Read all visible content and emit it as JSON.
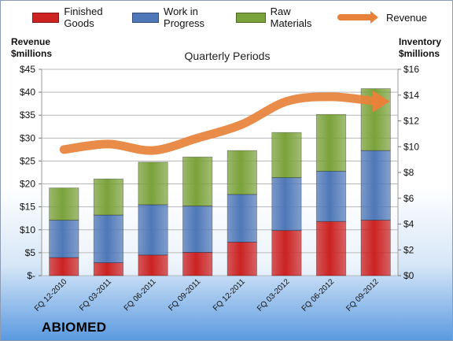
{
  "company": "ABIOMED",
  "chart_data": {
    "type": "bar",
    "stacked": true,
    "title": "Quarterly Periods",
    "left_axis_label_line1": "Revenue",
    "left_axis_label_line2": "$millions",
    "right_axis_label_line1": "Inventory",
    "right_axis_label_line2": "$millions",
    "categories": [
      "FQ 12-2010",
      "FQ 03-2011",
      "FQ 06-2011",
      "FQ 09-2011",
      "FQ 12-2011",
      "FQ 03-2012",
      "FQ 06-2012",
      "FQ 09-2012"
    ],
    "series": [
      {
        "name": "Finished Goods",
        "axis": "right",
        "color": "#cc2222",
        "values": [
          1.4,
          1.0,
          1.6,
          1.8,
          2.6,
          3.5,
          4.2,
          4.3
        ]
      },
      {
        "name": "Work in Progress",
        "axis": "right",
        "color": "#4f78b8",
        "values": [
          2.9,
          3.7,
          3.9,
          3.6,
          3.7,
          4.1,
          3.9,
          5.4
        ]
      },
      {
        "name": "Raw Materials",
        "axis": "right",
        "color": "#7aa23a",
        "values": [
          2.5,
          2.8,
          3.3,
          3.8,
          3.4,
          3.5,
          4.4,
          4.8
        ]
      },
      {
        "name": "Revenue",
        "axis": "left",
        "type": "line",
        "color": "#e8823a",
        "values": [
          27.5,
          28.7,
          27.3,
          30.0,
          33.0,
          38.0,
          39.0,
          38.0
        ]
      }
    ],
    "y_left": {
      "ylim": [
        0,
        45
      ],
      "ticks": [
        "$-",
        "$5",
        "$10",
        "$15",
        "$20",
        "$25",
        "$30",
        "$35",
        "$40",
        "$45"
      ]
    },
    "y_right": {
      "ylim": [
        0,
        16
      ],
      "ticks": [
        "$0",
        "$2",
        "$4",
        "$6",
        "$8",
        "$10",
        "$12",
        "$14",
        "$16"
      ]
    },
    "grid": true,
    "legend": "top"
  }
}
